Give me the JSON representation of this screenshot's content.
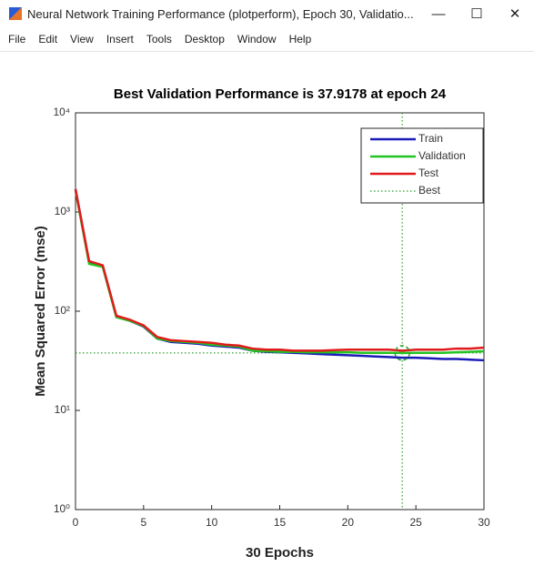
{
  "window": {
    "title": "Neural Network Training Performance (plotperform), Epoch 30, Validatio...",
    "menu": [
      "File",
      "Edit",
      "View",
      "Insert",
      "Tools",
      "Desktop",
      "Window",
      "Help"
    ]
  },
  "chart_data": {
    "type": "line",
    "title": "Best Validation Performance is 37.9178 at epoch 24",
    "x_label": "30 Epochs",
    "y_label": "Mean Squared Error  (mse)",
    "x": [
      0,
      1,
      2,
      3,
      4,
      5,
      6,
      7,
      8,
      9,
      10,
      11,
      12,
      13,
      14,
      15,
      16,
      17,
      18,
      19,
      20,
      21,
      22,
      23,
      24,
      25,
      26,
      27,
      28,
      29,
      30
    ],
    "series": [
      {
        "name": "Train",
        "color": "#1a1ab8",
        "values": [
          1700,
          310,
          285,
          88,
          80,
          70,
          53,
          49,
          48,
          47,
          45,
          44,
          43,
          40,
          39,
          38.5,
          38,
          37.5,
          37,
          36.5,
          36,
          35.5,
          35,
          34.5,
          34,
          34,
          33.5,
          33,
          33,
          32.5,
          32
        ]
      },
      {
        "name": "Validation",
        "color": "#22c422",
        "values": [
          1650,
          300,
          280,
          87,
          80,
          71,
          53,
          50,
          49,
          48,
          46,
          45,
          44,
          40,
          39.5,
          39,
          39,
          38.5,
          38.5,
          38.5,
          38.5,
          38,
          38,
          38,
          37.9178,
          38,
          38,
          38,
          38.5,
          39,
          39.5
        ]
      },
      {
        "name": "Test",
        "color": "#e01b1b",
        "values": [
          1700,
          320,
          290,
          90,
          82,
          72,
          55,
          51,
          50,
          49,
          48,
          46,
          45,
          42,
          41,
          41,
          40,
          40,
          40,
          40.5,
          41,
          41,
          41,
          41,
          40,
          41,
          41,
          41,
          42,
          42,
          43
        ]
      }
    ],
    "best": {
      "name": "Best",
      "color": "#2ca02c",
      "x": 24,
      "y": 37.9178
    },
    "log_y": true,
    "legend": "top-right",
    "xlim": [
      0,
      30
    ],
    "xticks": [
      0,
      5,
      10,
      15,
      20,
      25,
      30
    ],
    "ylim": [
      1,
      10000
    ],
    "yticks": [
      {
        "value": 1,
        "label": "10⁰"
      },
      {
        "value": 10,
        "label": "10¹"
      },
      {
        "value": 100,
        "label": "10²"
      },
      {
        "value": 1000,
        "label": "10³"
      },
      {
        "value": 10000,
        "label": "10⁴"
      }
    ]
  }
}
